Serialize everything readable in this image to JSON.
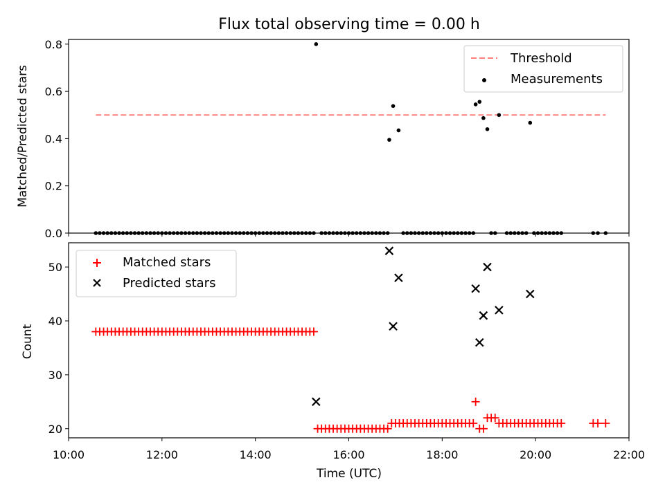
{
  "chart_data": [
    {
      "type": "scatter",
      "title": "Flux total observing time = 0.00 h",
      "xlabel": "",
      "ylabel": "Matched/Predicted stars",
      "ylim": [
        0,
        0.82
      ],
      "yticks": [
        "0.0",
        "0.2",
        "0.4",
        "0.6",
        "0.8"
      ],
      "legend_position": "top-right",
      "threshold": {
        "name": "Threshold",
        "value": 0.5,
        "color": "#ff7f7f",
        "x_range": [
          "10:35",
          "21:30"
        ]
      },
      "series": [
        {
          "name": "Measurements",
          "color": "#000000",
          "points": [
            [
              "15:18",
              0.8
            ],
            [
              "16:52",
              0.395
            ],
            [
              "16:57",
              0.538
            ],
            [
              "17:04",
              0.435
            ],
            [
              "18:43",
              0.545
            ],
            [
              "18:48",
              0.556
            ],
            [
              "18:53",
              0.487
            ],
            [
              "18:58",
              0.44
            ],
            [
              "19:13",
              0.5
            ],
            [
              "19:53",
              0.467
            ],
            [
              "10:35",
              0
            ],
            [
              "10:40",
              0
            ],
            [
              "10:45",
              0
            ],
            [
              "10:50",
              0
            ],
            [
              "10:55",
              0
            ],
            [
              "11:00",
              0
            ],
            [
              "11:05",
              0
            ],
            [
              "11:10",
              0
            ],
            [
              "11:15",
              0
            ],
            [
              "11:20",
              0
            ],
            [
              "11:25",
              0
            ],
            [
              "11:30",
              0
            ],
            [
              "11:35",
              0
            ],
            [
              "11:40",
              0
            ],
            [
              "11:45",
              0
            ],
            [
              "11:50",
              0
            ],
            [
              "11:55",
              0
            ],
            [
              "12:00",
              0
            ],
            [
              "12:05",
              0
            ],
            [
              "12:10",
              0
            ],
            [
              "12:15",
              0
            ],
            [
              "12:20",
              0
            ],
            [
              "12:25",
              0
            ],
            [
              "12:30",
              0
            ],
            [
              "12:35",
              0
            ],
            [
              "12:40",
              0
            ],
            [
              "12:45",
              0
            ],
            [
              "12:50",
              0
            ],
            [
              "12:55",
              0
            ],
            [
              "13:00",
              0
            ],
            [
              "13:05",
              0
            ],
            [
              "13:10",
              0
            ],
            [
              "13:15",
              0
            ],
            [
              "13:20",
              0
            ],
            [
              "13:25",
              0
            ],
            [
              "13:30",
              0
            ],
            [
              "13:35",
              0
            ],
            [
              "13:40",
              0
            ],
            [
              "13:45",
              0
            ],
            [
              "13:50",
              0
            ],
            [
              "13:55",
              0
            ],
            [
              "14:00",
              0
            ],
            [
              "14:05",
              0
            ],
            [
              "14:10",
              0
            ],
            [
              "14:15",
              0
            ],
            [
              "14:20",
              0
            ],
            [
              "14:25",
              0
            ],
            [
              "14:30",
              0
            ],
            [
              "14:35",
              0
            ],
            [
              "14:40",
              0
            ],
            [
              "14:45",
              0
            ],
            [
              "14:50",
              0
            ],
            [
              "14:55",
              0
            ],
            [
              "15:00",
              0
            ],
            [
              "15:05",
              0
            ],
            [
              "15:10",
              0
            ],
            [
              "15:15",
              0
            ],
            [
              "15:25",
              0
            ],
            [
              "15:30",
              0
            ],
            [
              "15:35",
              0
            ],
            [
              "15:40",
              0
            ],
            [
              "15:45",
              0
            ],
            [
              "15:50",
              0
            ],
            [
              "15:55",
              0
            ],
            [
              "16:00",
              0
            ],
            [
              "16:05",
              0
            ],
            [
              "16:10",
              0
            ],
            [
              "16:15",
              0
            ],
            [
              "16:20",
              0
            ],
            [
              "16:25",
              0
            ],
            [
              "16:30",
              0
            ],
            [
              "16:35",
              0
            ],
            [
              "16:40",
              0
            ],
            [
              "16:45",
              0
            ],
            [
              "16:50",
              0
            ],
            [
              "17:10",
              0
            ],
            [
              "17:15",
              0
            ],
            [
              "17:20",
              0
            ],
            [
              "17:25",
              0
            ],
            [
              "17:30",
              0
            ],
            [
              "17:35",
              0
            ],
            [
              "17:40",
              0
            ],
            [
              "17:45",
              0
            ],
            [
              "17:50",
              0
            ],
            [
              "17:55",
              0
            ],
            [
              "18:00",
              0
            ],
            [
              "18:05",
              0
            ],
            [
              "18:10",
              0
            ],
            [
              "18:15",
              0
            ],
            [
              "18:20",
              0
            ],
            [
              "18:25",
              0
            ],
            [
              "18:30",
              0
            ],
            [
              "18:35",
              0
            ],
            [
              "18:40",
              0
            ],
            [
              "19:03",
              0
            ],
            [
              "19:08",
              0
            ],
            [
              "19:23",
              0
            ],
            [
              "19:28",
              0
            ],
            [
              "19:33",
              0
            ],
            [
              "19:38",
              0
            ],
            [
              "19:43",
              0
            ],
            [
              "19:48",
              0
            ],
            [
              "19:58",
              0
            ],
            [
              "20:03",
              0
            ],
            [
              "20:08",
              0
            ],
            [
              "20:13",
              0
            ],
            [
              "20:18",
              0
            ],
            [
              "20:23",
              0
            ],
            [
              "20:28",
              0
            ],
            [
              "20:33",
              0
            ],
            [
              "21:14",
              0
            ],
            [
              "21:20",
              0
            ],
            [
              "21:30",
              0
            ]
          ]
        }
      ]
    },
    {
      "type": "scatter",
      "title": "",
      "xlabel": "Time (UTC)",
      "ylabel": "Count",
      "ylim": [
        18.3,
        54.5
      ],
      "yticks": [
        "20",
        "30",
        "40",
        "50"
      ],
      "xlim": [
        "10:00",
        "22:00"
      ],
      "xticks": [
        "10:00",
        "12:00",
        "14:00",
        "16:00",
        "18:00",
        "20:00",
        "22:00"
      ],
      "legend_position": "top-left",
      "series": [
        {
          "name": "Matched stars",
          "marker": "plus",
          "color": "#ff0000",
          "points": [
            [
              "10:35",
              38
            ],
            [
              "10:40",
              38
            ],
            [
              "10:45",
              38
            ],
            [
              "10:50",
              38
            ],
            [
              "10:55",
              38
            ],
            [
              "11:00",
              38
            ],
            [
              "11:05",
              38
            ],
            [
              "11:10",
              38
            ],
            [
              "11:15",
              38
            ],
            [
              "11:20",
              38
            ],
            [
              "11:25",
              38
            ],
            [
              "11:30",
              38
            ],
            [
              "11:35",
              38
            ],
            [
              "11:40",
              38
            ],
            [
              "11:45",
              38
            ],
            [
              "11:50",
              38
            ],
            [
              "11:55",
              38
            ],
            [
              "12:00",
              38
            ],
            [
              "12:05",
              38
            ],
            [
              "12:10",
              38
            ],
            [
              "12:15",
              38
            ],
            [
              "12:20",
              38
            ],
            [
              "12:25",
              38
            ],
            [
              "12:30",
              38
            ],
            [
              "12:35",
              38
            ],
            [
              "12:40",
              38
            ],
            [
              "12:45",
              38
            ],
            [
              "12:50",
              38
            ],
            [
              "12:55",
              38
            ],
            [
              "13:00",
              38
            ],
            [
              "13:05",
              38
            ],
            [
              "13:10",
              38
            ],
            [
              "13:15",
              38
            ],
            [
              "13:20",
              38
            ],
            [
              "13:25",
              38
            ],
            [
              "13:30",
              38
            ],
            [
              "13:35",
              38
            ],
            [
              "13:40",
              38
            ],
            [
              "13:45",
              38
            ],
            [
              "13:50",
              38
            ],
            [
              "13:55",
              38
            ],
            [
              "14:00",
              38
            ],
            [
              "14:05",
              38
            ],
            [
              "14:10",
              38
            ],
            [
              "14:15",
              38
            ],
            [
              "14:20",
              38
            ],
            [
              "14:25",
              38
            ],
            [
              "14:30",
              38
            ],
            [
              "14:35",
              38
            ],
            [
              "14:40",
              38
            ],
            [
              "14:45",
              38
            ],
            [
              "14:50",
              38
            ],
            [
              "14:55",
              38
            ],
            [
              "15:00",
              38
            ],
            [
              "15:05",
              38
            ],
            [
              "15:10",
              38
            ],
            [
              "15:15",
              38
            ],
            [
              "15:20",
              20
            ],
            [
              "15:25",
              20
            ],
            [
              "15:30",
              20
            ],
            [
              "15:35",
              20
            ],
            [
              "15:40",
              20
            ],
            [
              "15:45",
              20
            ],
            [
              "15:50",
              20
            ],
            [
              "15:55",
              20
            ],
            [
              "16:00",
              20
            ],
            [
              "16:05",
              20
            ],
            [
              "16:10",
              20
            ],
            [
              "16:15",
              20
            ],
            [
              "16:20",
              20
            ],
            [
              "16:25",
              20
            ],
            [
              "16:30",
              20
            ],
            [
              "16:35",
              20
            ],
            [
              "16:40",
              20
            ],
            [
              "16:45",
              20
            ],
            [
              "16:50",
              20
            ],
            [
              "16:55",
              21
            ],
            [
              "17:00",
              21
            ],
            [
              "17:05",
              21
            ],
            [
              "17:10",
              21
            ],
            [
              "17:15",
              21
            ],
            [
              "17:20",
              21
            ],
            [
              "17:25",
              21
            ],
            [
              "17:30",
              21
            ],
            [
              "17:35",
              21
            ],
            [
              "17:40",
              21
            ],
            [
              "17:45",
              21
            ],
            [
              "17:50",
              21
            ],
            [
              "17:55",
              21
            ],
            [
              "18:00",
              21
            ],
            [
              "18:05",
              21
            ],
            [
              "18:10",
              21
            ],
            [
              "18:15",
              21
            ],
            [
              "18:20",
              21
            ],
            [
              "18:25",
              21
            ],
            [
              "18:30",
              21
            ],
            [
              "18:35",
              21
            ],
            [
              "18:40",
              21
            ],
            [
              "18:43",
              25
            ],
            [
              "18:48",
              20
            ],
            [
              "18:53",
              20
            ],
            [
              "18:58",
              22
            ],
            [
              "19:03",
              22
            ],
            [
              "19:08",
              22
            ],
            [
              "19:13",
              21
            ],
            [
              "19:18",
              21
            ],
            [
              "19:23",
              21
            ],
            [
              "19:28",
              21
            ],
            [
              "19:33",
              21
            ],
            [
              "19:38",
              21
            ],
            [
              "19:43",
              21
            ],
            [
              "19:48",
              21
            ],
            [
              "19:53",
              21
            ],
            [
              "19:58",
              21
            ],
            [
              "20:03",
              21
            ],
            [
              "20:08",
              21
            ],
            [
              "20:13",
              21
            ],
            [
              "20:18",
              21
            ],
            [
              "20:23",
              21
            ],
            [
              "20:28",
              21
            ],
            [
              "20:33",
              21
            ],
            [
              "21:14",
              21
            ],
            [
              "21:20",
              21
            ],
            [
              "21:30",
              21
            ]
          ]
        },
        {
          "name": "Predicted stars",
          "marker": "x",
          "color": "#000000",
          "points": [
            [
              "15:18",
              25
            ],
            [
              "16:52",
              53
            ],
            [
              "16:57",
              39
            ],
            [
              "17:04",
              48
            ],
            [
              "18:43",
              46
            ],
            [
              "18:48",
              36
            ],
            [
              "18:53",
              41
            ],
            [
              "18:58",
              50
            ],
            [
              "19:13",
              42
            ],
            [
              "19:53",
              45
            ]
          ]
        }
      ]
    }
  ]
}
